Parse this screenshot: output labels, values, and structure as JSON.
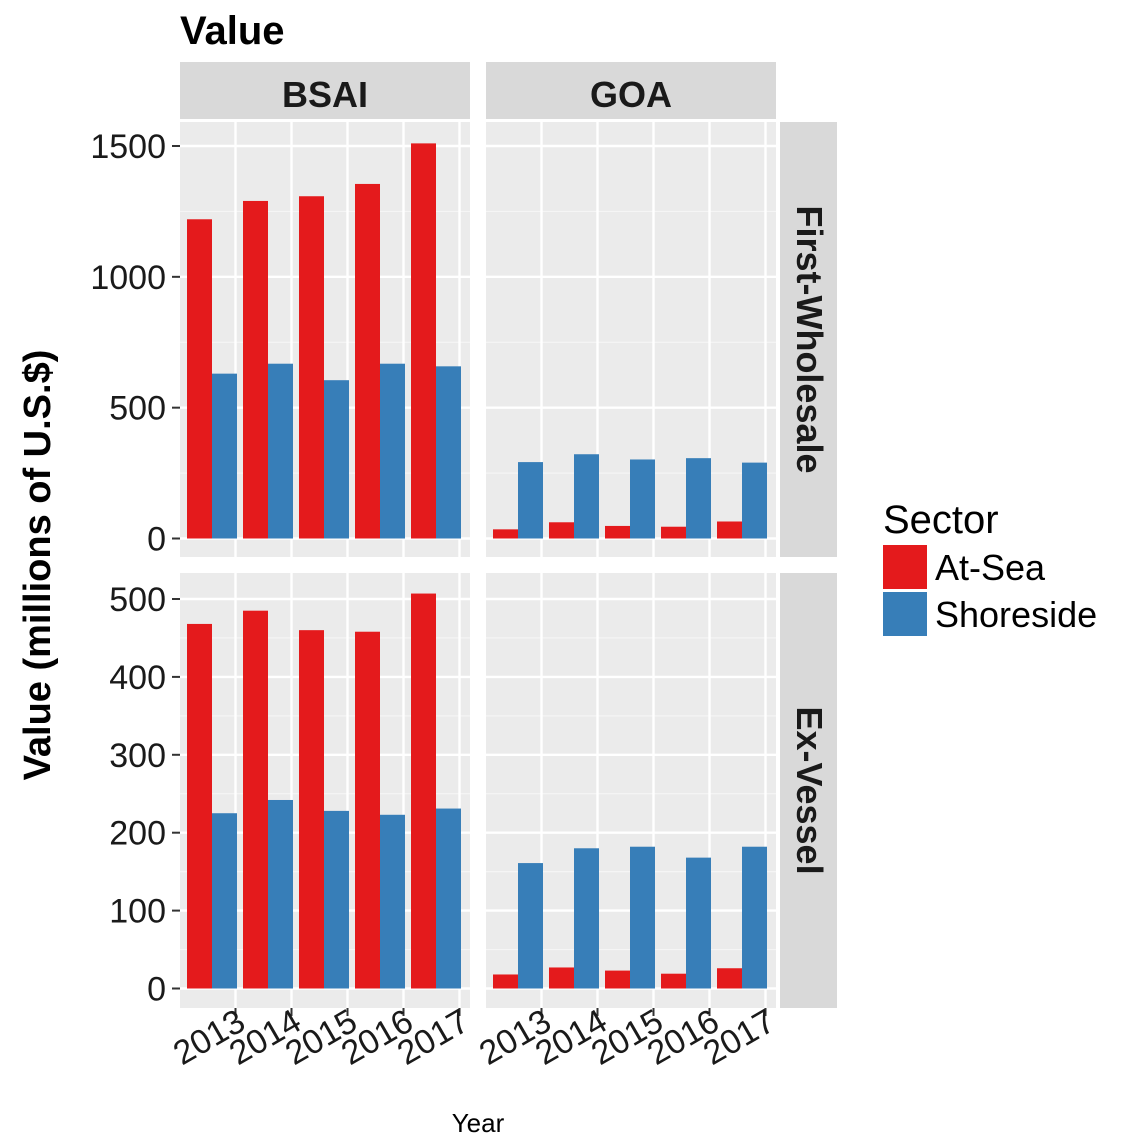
{
  "chart_data": {
    "type": "bar",
    "title": "Value",
    "xlabel": "Year",
    "ylabel": "Value (millions of U.S.$)",
    "categories": [
      "2013",
      "2014",
      "2015",
      "2016",
      "2017"
    ],
    "columns": [
      "BSAI",
      "GOA"
    ],
    "rows": [
      "First-Wholesale",
      "Ex-Vessel"
    ],
    "legend": {
      "title": "Sector",
      "position": "right",
      "entries": [
        {
          "name": "At-Sea",
          "color": "#e41a1c"
        },
        {
          "name": "Shoreside",
          "color": "#377eb8"
        }
      ]
    },
    "panels": [
      {
        "column": "BSAI",
        "row": "First-Wholesale",
        "ylim": [
          0,
          1600
        ],
        "yticks": [
          0,
          500,
          1000,
          1500
        ],
        "series": [
          {
            "name": "At-Sea",
            "values": [
              1220,
              1290,
              1308,
              1355,
              1510
            ]
          },
          {
            "name": "Shoreside",
            "values": [
              630,
              668,
              605,
              668,
              658
            ]
          }
        ]
      },
      {
        "column": "GOA",
        "row": "First-Wholesale",
        "ylim": [
          0,
          1600
        ],
        "yticks": [
          0,
          500,
          1000,
          1500
        ],
        "series": [
          {
            "name": "At-Sea",
            "values": [
              35,
              62,
              48,
              45,
              65
            ]
          },
          {
            "name": "Shoreside",
            "values": [
              292,
              322,
              302,
              307,
              290
            ]
          }
        ]
      },
      {
        "column": "BSAI",
        "row": "Ex-Vessel",
        "ylim": [
          0,
          525
        ],
        "yticks": [
          0,
          100,
          200,
          300,
          400,
          500
        ],
        "series": [
          {
            "name": "At-Sea",
            "values": [
              468,
              485,
              460,
              458,
              507
            ]
          },
          {
            "name": "Shoreside",
            "values": [
              225,
              242,
              228,
              223,
              231
            ]
          }
        ]
      },
      {
        "column": "GOA",
        "row": "Ex-Vessel",
        "ylim": [
          0,
          525
        ],
        "yticks": [
          0,
          100,
          200,
          300,
          400,
          500
        ],
        "series": [
          {
            "name": "At-Sea",
            "values": [
              18,
              27,
              23,
              19,
              26
            ]
          },
          {
            "name": "Shoreside",
            "values": [
              161,
              180,
              182,
              168,
              182
            ]
          }
        ]
      }
    ],
    "grid": true,
    "panel_background": "#ebebeb",
    "strip_background": "#d9d9d9"
  }
}
